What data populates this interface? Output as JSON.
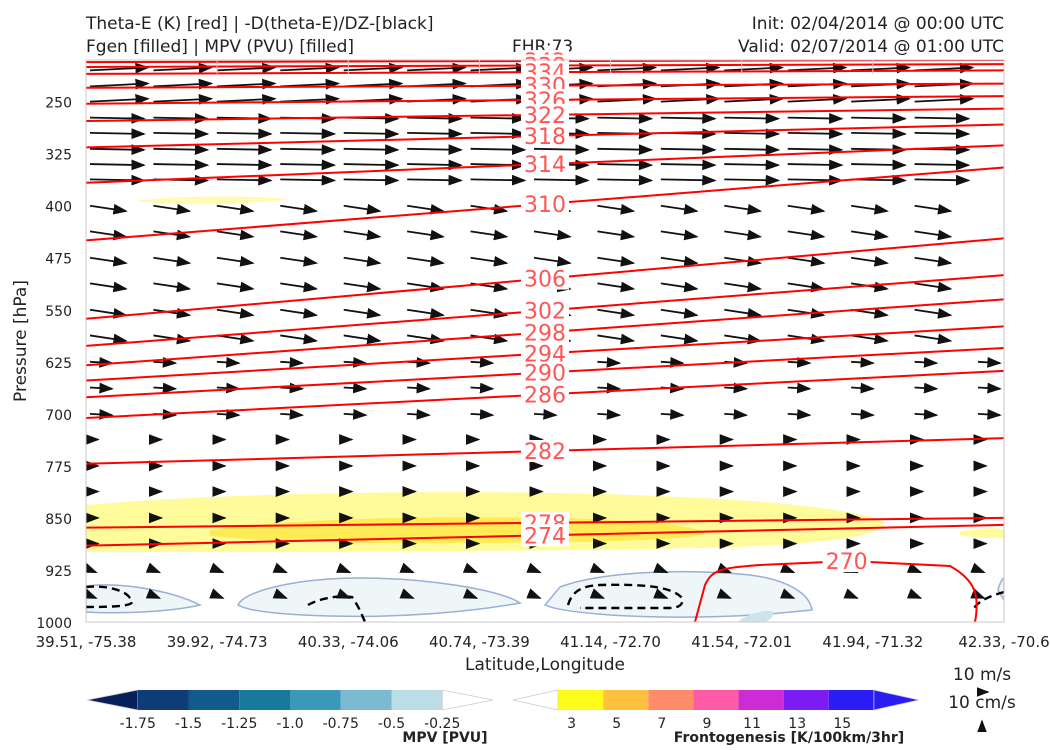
{
  "header": {
    "title_left_1": "Theta-E (K) [red] | -D(theta-E)/DZ-[black]",
    "title_left_2": "Fgen [filled] | MPV (PVU) [filled]",
    "fhr": "FHR:73",
    "init": "Init: 02/04/2014 @ 00:00 UTC",
    "valid": "Valid: 02/07/2014 @ 01:00 UTC"
  },
  "colors": {
    "theta_e": "#ff0000",
    "theta_e_label": "#ff5555",
    "vectors": "#111111",
    "mpv_outline": "#9aaed6",
    "fgen_light": "#fffb9a",
    "fgen_mid": "#ffe84a"
  },
  "chart_data": {
    "type": "cross-section",
    "xlabel": "Latitude,Longitude",
    "ylabel": "Pressure [hPa]",
    "x_ticks": [
      "39.51, -75.38",
      "39.92, -74.73",
      "40.33, -74.06",
      "40.74, -73.39",
      "41.14, -72.70",
      "41.54, -72.01",
      "41.94, -71.32",
      "42.33, -70.6"
    ],
    "y_ticks": [
      250,
      325,
      400,
      475,
      550,
      625,
      700,
      775,
      850,
      925,
      1000
    ],
    "ylim": [
      1000,
      190
    ],
    "theta_e_contours": [
      {
        "value": 342,
        "left": 193,
        "right": 190,
        "label_x": 3.5
      },
      {
        "value": 338,
        "left": 200,
        "right": 196,
        "label_x": 3.5
      },
      {
        "value": 334,
        "left": 210,
        "right": 205,
        "label_x": 3.5
      },
      {
        "value": 330,
        "left": 230,
        "right": 224,
        "label_x": 3.5
      },
      {
        "value": 326,
        "left": 253,
        "right": 242,
        "label_x": 3.5
      },
      {
        "value": 322,
        "left": 278,
        "right": 260,
        "label_x": 3.5
      },
      {
        "value": 318,
        "left": 316,
        "right": 283,
        "label_x": 3.5
      },
      {
        "value": 314,
        "left": 367,
        "right": 313,
        "label_x": 3.5
      },
      {
        "value": 310,
        "left": 450,
        "right": 345,
        "label_x": 3.5
      },
      {
        "value": 306,
        "left": 563,
        "right": 447,
        "label_x": 3.5
      },
      {
        "value": 302,
        "left": 602,
        "right": 500,
        "label_x": 3.5
      },
      {
        "value": 298,
        "left": 630,
        "right": 535,
        "label_x": 3.5
      },
      {
        "value": 294,
        "left": 652,
        "right": 574,
        "label_x": 3.5
      },
      {
        "value": 290,
        "left": 676,
        "right": 605,
        "label_x": 3.5
      },
      {
        "value": 286,
        "left": 706,
        "right": 638,
        "label_x": 3.5
      },
      {
        "value": 282,
        "left": 772,
        "right": 735,
        "label_x": 3.5
      },
      {
        "value": 278,
        "left": 864,
        "right": 850,
        "label_x": 3.5
      },
      {
        "value": 274,
        "left": 890,
        "right": 860,
        "label_x": 3.5
      },
      {
        "value": 270,
        "left": null,
        "right": null,
        "label_x": 5.8
      }
    ],
    "mpv_colorbar": {
      "label": "MPV [PVU]",
      "ticks": [
        "-1.75",
        "-1.5",
        "-1.25",
        "-1.0",
        "-0.75",
        "-0.5",
        "-0.25"
      ],
      "colors": [
        "#08205a",
        "#0f3d78",
        "#135a8c",
        "#17799c",
        "#3a98b9",
        "#7bbad0",
        "#bcdce6",
        "#ffffff"
      ]
    },
    "fgen_colorbar": {
      "label": "Frontogenesis [K/100km/3hr]",
      "ticks": [
        "3",
        "5",
        "7",
        "9",
        "11",
        "13",
        "15"
      ],
      "colors": [
        "#ffffff",
        "#fffb1a",
        "#ffc13f",
        "#ff8c6a",
        "#ff5aa6",
        "#cc2bd6",
        "#7a1cf2",
        "#2a1cf5",
        "#2a1cf5"
      ]
    },
    "vector_key": {
      "u_label": "10 m/s",
      "w_label": "10 cm/s"
    }
  }
}
